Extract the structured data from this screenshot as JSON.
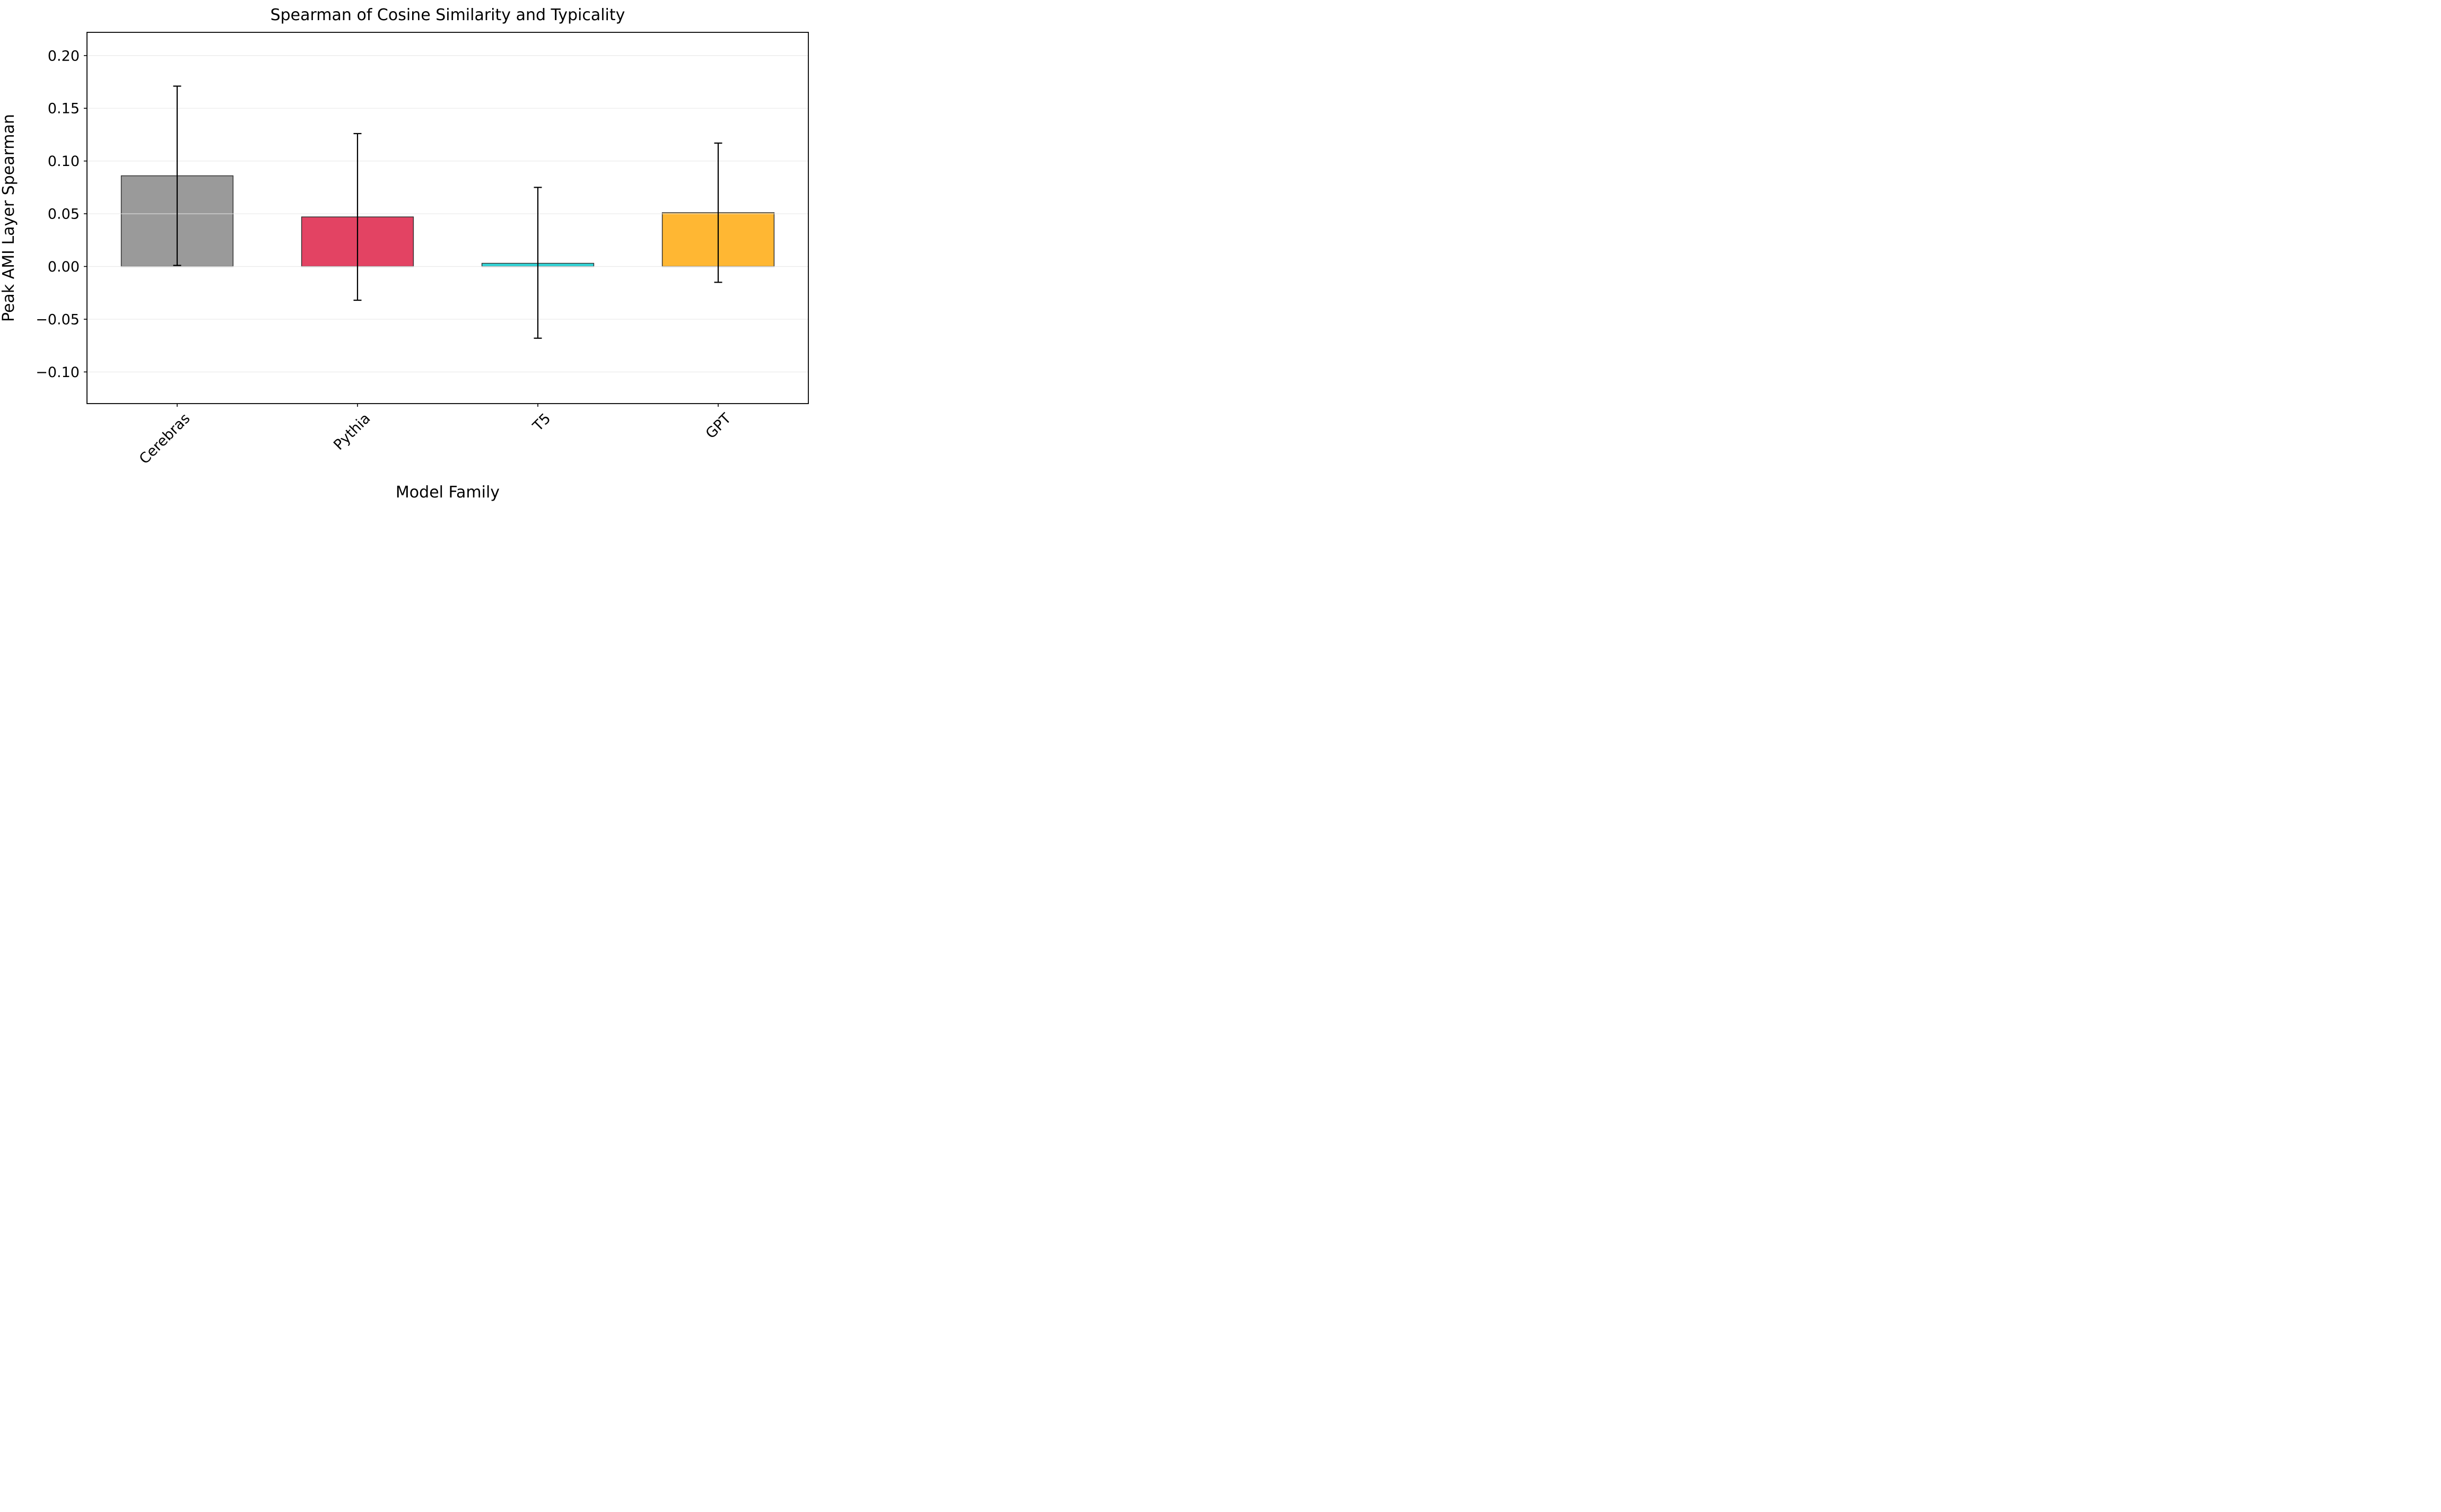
{
  "chart_data": {
    "type": "bar",
    "title": "Spearman of Cosine Similarity and Typicality",
    "xlabel": "Model Family",
    "ylabel": "Peak AMI Layer Spearman",
    "categories": [
      "Cerebras",
      "Pythia",
      "T5",
      "GPT"
    ],
    "values": [
      0.086,
      0.047,
      0.003,
      0.051
    ],
    "error_bar_low": [
      0.001,
      -0.032,
      -0.068,
      -0.015
    ],
    "error_bar_high": [
      0.171,
      0.126,
      0.075,
      0.117
    ],
    "bar_colors": [
      "#9A9A9A",
      "#E34363",
      "#33D8DA",
      "#FFB733"
    ],
    "bar_edge_color": "#333333",
    "error_bar_color": "#000000",
    "yticks": [
      0.2,
      0.15,
      0.1,
      0.05,
      0.0,
      -0.05,
      -0.1
    ],
    "ylim": [
      -0.13,
      0.222
    ],
    "grid": true,
    "grid_color": "#e8e8e8",
    "grid_on_top": true,
    "legend": "none",
    "background": "#ffffff",
    "bar_width_fraction": 0.62
  }
}
